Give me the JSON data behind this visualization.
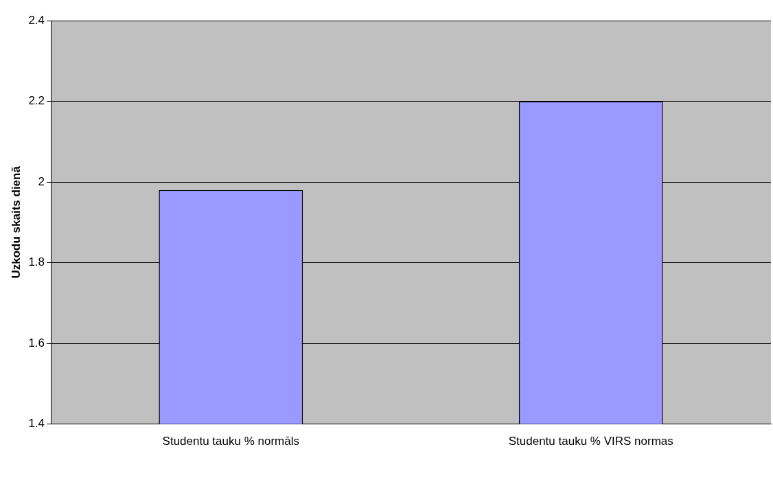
{
  "chart_data": {
    "type": "bar",
    "ylabel": "Uzkodu skaits dienā",
    "categories": [
      "Studentu tauku % normāls",
      "Studentu tauku % VIRS normas"
    ],
    "values": [
      1.98,
      2.2
    ],
    "color": "#9999ff",
    "ylim": [
      1.4,
      2.4
    ],
    "yticks": [
      1.4,
      1.6,
      1.8,
      2,
      2.2,
      2.4
    ],
    "grid": "y",
    "legend": false
  }
}
